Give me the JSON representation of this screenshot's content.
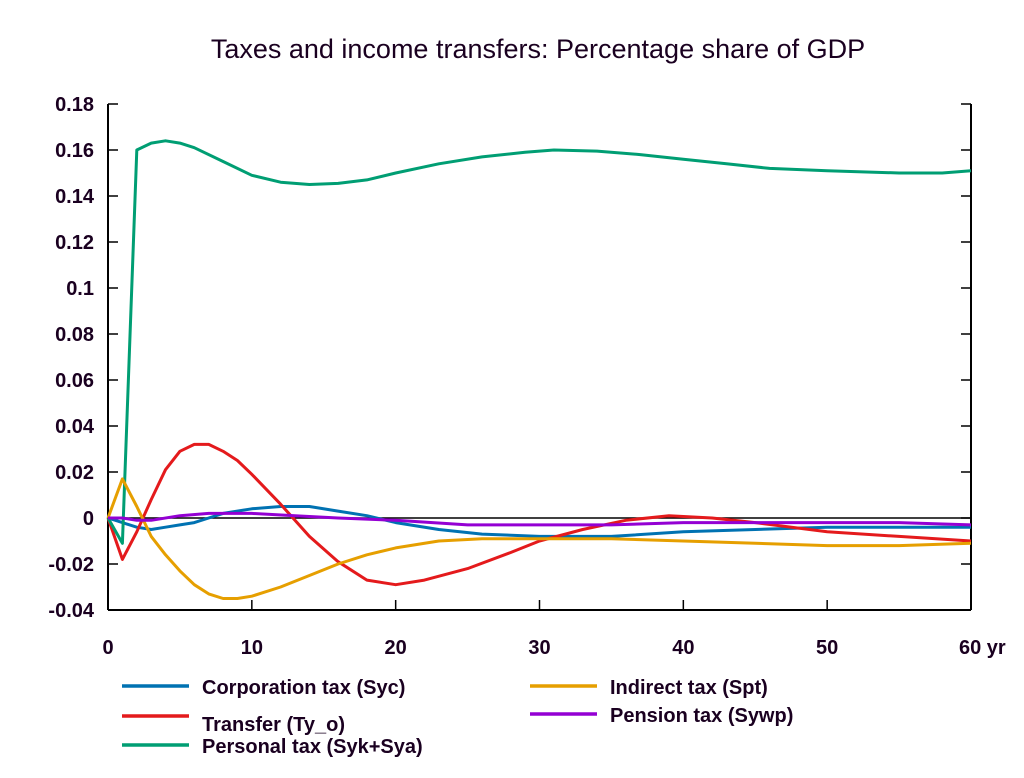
{
  "chart_data": {
    "type": "line",
    "title": "Taxes and income transfers: Percentage share of GDP",
    "xlabel": "",
    "ylabel": "",
    "x_unit_label": "yr",
    "xlim": [
      0,
      60
    ],
    "ylim": [
      -0.04,
      0.18
    ],
    "xticks": [
      0,
      10,
      20,
      30,
      40,
      50,
      60
    ],
    "xtick_labels": [
      "0",
      "10",
      "20",
      "30",
      "40",
      "50",
      "60 yr"
    ],
    "yticks": [
      -0.04,
      -0.02,
      0,
      0.02,
      0.04,
      0.06,
      0.08,
      0.1,
      0.12,
      0.14,
      0.16,
      0.18
    ],
    "ytick_labels": [
      "-0.04",
      "-0.02",
      "0",
      "0.02",
      "0.04",
      "0.06",
      "0.08",
      "0.1",
      "0.12",
      "0.14",
      "0.16",
      "0.18"
    ],
    "grid": false,
    "zero_line": true,
    "legend_position": "bottom",
    "series": [
      {
        "name": "Corporation tax (Syc)",
        "color": "#0072B2",
        "x": [
          0,
          1,
          2,
          3,
          4,
          5,
          6,
          7,
          8,
          9,
          10,
          12,
          14,
          16,
          18,
          20,
          23,
          26,
          30,
          35,
          40,
          45,
          50,
          55,
          60
        ],
        "y": [
          0,
          -0.002,
          -0.004,
          -0.005,
          -0.004,
          -0.003,
          -0.002,
          0.0,
          0.002,
          0.003,
          0.004,
          0.005,
          0.005,
          0.003,
          0.001,
          -0.002,
          -0.005,
          -0.007,
          -0.008,
          -0.008,
          -0.006,
          -0.005,
          -0.004,
          -0.004,
          -0.004
        ]
      },
      {
        "name": "Transfer (Ty_o)",
        "color": "#E41A1C",
        "x": [
          0,
          1,
          2,
          3,
          4,
          5,
          6,
          7,
          8,
          9,
          10,
          12,
          14,
          16,
          18,
          20,
          22,
          25,
          28,
          30,
          33,
          36,
          39,
          42,
          45,
          50,
          55,
          60
        ],
        "y": [
          0,
          -0.018,
          -0.006,
          0.008,
          0.021,
          0.029,
          0.032,
          0.032,
          0.029,
          0.025,
          0.019,
          0.006,
          -0.008,
          -0.019,
          -0.027,
          -0.029,
          -0.027,
          -0.022,
          -0.015,
          -0.01,
          -0.005,
          -0.001,
          0.001,
          0.0,
          -0.002,
          -0.006,
          -0.008,
          -0.01
        ]
      },
      {
        "name": "Personal tax (Syk+Sya)",
        "color": "#009E73",
        "x": [
          0,
          1,
          2,
          3,
          4,
          5,
          6,
          8,
          10,
          12,
          14,
          16,
          18,
          20,
          23,
          26,
          29,
          31,
          34,
          37,
          40,
          43,
          46,
          50,
          55,
          58,
          60
        ],
        "y": [
          0,
          -0.011,
          0.16,
          0.163,
          0.164,
          0.163,
          0.161,
          0.155,
          0.149,
          0.146,
          0.145,
          0.1455,
          0.147,
          0.15,
          0.154,
          0.157,
          0.159,
          0.16,
          0.1595,
          0.158,
          0.156,
          0.154,
          0.152,
          0.151,
          0.15,
          0.15,
          0.151
        ]
      },
      {
        "name": "Indirect tax (Spt)",
        "color": "#E69F00",
        "x": [
          0,
          1,
          2,
          3,
          4,
          5,
          6,
          7,
          8,
          9,
          10,
          12,
          14,
          16,
          18,
          20,
          23,
          26,
          30,
          35,
          40,
          45,
          50,
          55,
          60
        ],
        "y": [
          0,
          0.017,
          0.005,
          -0.008,
          -0.016,
          -0.023,
          -0.029,
          -0.033,
          -0.035,
          -0.035,
          -0.034,
          -0.03,
          -0.025,
          -0.02,
          -0.016,
          -0.013,
          -0.01,
          -0.009,
          -0.009,
          -0.009,
          -0.01,
          -0.011,
          -0.012,
          -0.012,
          -0.011
        ]
      },
      {
        "name": "Pension tax (Sywp)",
        "color": "#9400D3",
        "x": [
          0,
          1,
          2,
          3,
          5,
          7,
          10,
          13,
          16,
          20,
          25,
          30,
          35,
          40,
          45,
          50,
          55,
          60
        ],
        "y": [
          0,
          0.0,
          -0.001,
          -0.001,
          0.001,
          0.002,
          0.002,
          0.001,
          0.0,
          -0.001,
          -0.003,
          -0.003,
          -0.003,
          -0.002,
          -0.002,
          -0.002,
          -0.002,
          -0.003
        ]
      }
    ]
  }
}
